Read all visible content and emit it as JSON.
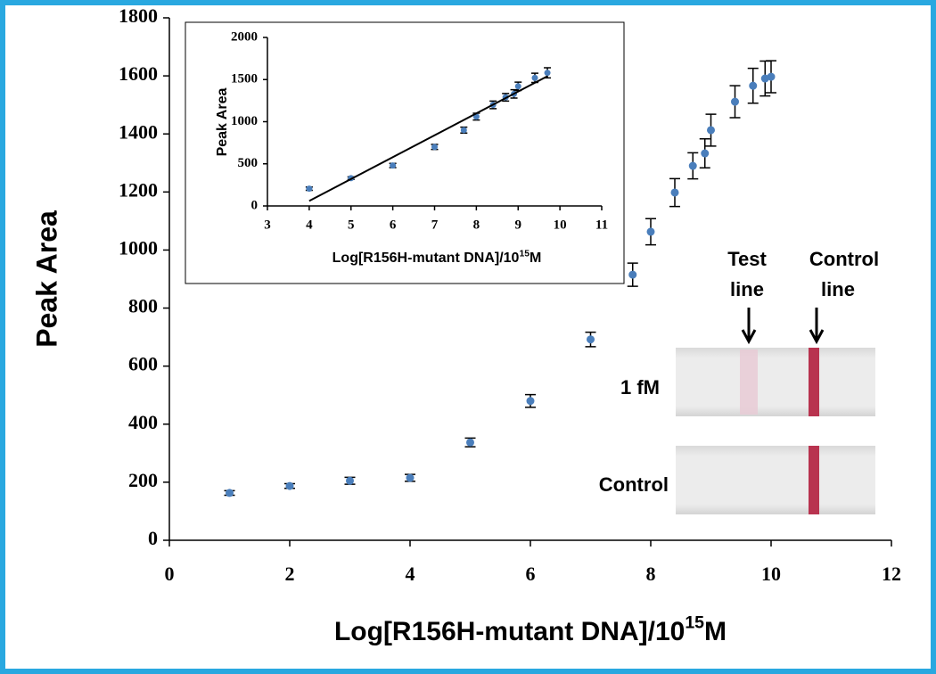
{
  "chart_data": [
    {
      "type": "scatter",
      "x_label": {
        "text": "Log[R156H-mutant DNA]/10",
        "superscript": "15",
        "unit": "M"
      },
      "y_label": "Peak Area",
      "xlim": [
        0,
        12
      ],
      "xticks": [
        0,
        2,
        4,
        6,
        8,
        10,
        12
      ],
      "ylim": [
        0,
        1800
      ],
      "yticks": [
        0,
        200,
        400,
        600,
        800,
        1000,
        1200,
        1400,
        1600,
        1800
      ],
      "series": [
        {
          "type": "scatter",
          "color": "#4a7ebb",
          "x": [
            1,
            2,
            3,
            4,
            5,
            6,
            7,
            7.7,
            8,
            8.4,
            8.7,
            8.9,
            9,
            9.4,
            9.7,
            9.9,
            10
          ],
          "values": [
            163,
            187,
            205,
            215,
            337,
            480,
            692,
            915,
            1063,
            1198,
            1290,
            1333,
            1413,
            1511,
            1566,
            1591,
            1597
          ],
          "errors": [
            8,
            8,
            12,
            12,
            15,
            22,
            25,
            40,
            45,
            48,
            45,
            50,
            55,
            55,
            60,
            60,
            55
          ]
        }
      ],
      "annotations": {
        "test_line": [
          "Test",
          "line"
        ],
        "control_line": [
          "Control",
          "line"
        ],
        "sample": "1 fM",
        "control": "Control"
      }
    },
    {
      "type": "scatter",
      "x_label": {
        "text": "Log[R156H-mutant DNA]/10",
        "superscript": "15",
        "unit": "M"
      },
      "y_label": "Peak Area",
      "xlim": [
        3,
        11
      ],
      "xticks": [
        3,
        4,
        5,
        6,
        7,
        8,
        9,
        10,
        11
      ],
      "ylim": [
        0,
        2000
      ],
      "yticks": [
        0,
        500,
        1000,
        1500,
        2000
      ],
      "series": [
        {
          "type": "scatter",
          "color": "#4a7ebb",
          "x": [
            4,
            5,
            6,
            7,
            7.7,
            8,
            8.4,
            8.7,
            8.9,
            9,
            9.4,
            9.7
          ],
          "values": [
            205,
            330,
            480,
            700,
            900,
            1060,
            1200,
            1290,
            1330,
            1420,
            1520,
            1580
          ],
          "errors": [
            20,
            15,
            25,
            30,
            35,
            40,
            45,
            45,
            50,
            50,
            55,
            60
          ]
        },
        {
          "type": "line",
          "color": "#000000",
          "x": [
            4,
            9.7
          ],
          "values": [
            60,
            1540
          ]
        }
      ]
    }
  ]
}
